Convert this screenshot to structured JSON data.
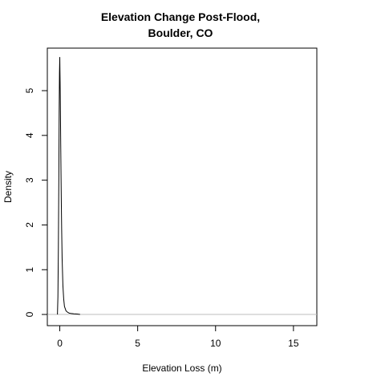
{
  "chart_data": {
    "type": "line",
    "title_lines": [
      "Elevation Change Post-Flood,",
      "Boulder, CO"
    ],
    "xlabel": "Elevation Loss (m)",
    "ylabel": "Density",
    "xlim": [
      -0.8,
      16.5
    ],
    "ylim": [
      -0.25,
      5.95
    ],
    "x_ticks": [
      0,
      5,
      10,
      15
    ],
    "y_ticks": [
      0,
      1,
      2,
      3,
      4,
      5
    ],
    "zero_line": true,
    "series": [
      {
        "x": [
          -0.15,
          -0.12,
          -0.09,
          -0.06,
          -0.04,
          -0.02,
          0.0,
          0.01,
          0.02,
          0.03,
          0.04,
          0.05,
          0.06,
          0.08,
          0.1,
          0.12,
          0.15,
          0.2,
          0.25,
          0.3,
          0.4,
          0.5,
          0.6,
          0.75,
          0.9,
          1.1,
          1.3
        ],
        "y": [
          0.0,
          0.4,
          1.5,
          3.1,
          4.5,
          5.4,
          5.75,
          5.45,
          5.2,
          4.9,
          4.55,
          4.2,
          3.8,
          3.1,
          2.45,
          1.9,
          1.25,
          0.65,
          0.35,
          0.18,
          0.08,
          0.05,
          0.03,
          0.02,
          0.015,
          0.01,
          0.0
        ]
      }
    ]
  }
}
